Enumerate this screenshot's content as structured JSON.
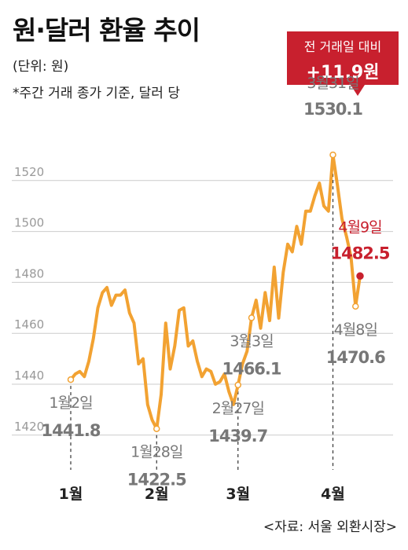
{
  "title": "원·달러 환율 추이",
  "unit_note": "(단위: 원)",
  "basis_note": "*주간 거래 종가 기준, 달러 당",
  "source": "<자료: 서울 외환시장>",
  "callout": {
    "label": "전 거래일 대비",
    "value": "+11.9원"
  },
  "colors": {
    "line": "#f2a232",
    "accent": "#c8202e",
    "grid": "#cccccc"
  },
  "chart_data": {
    "type": "line",
    "title": "원·달러 환율 추이",
    "ylabel": "",
    "xlabel": "",
    "ylim": [
      1415,
      1540
    ],
    "yticks": [
      1420,
      1440,
      1460,
      1480,
      1500,
      1520
    ],
    "month_labels": [
      {
        "label": "1월",
        "index": 0
      },
      {
        "label": "2월",
        "index": 19
      },
      {
        "label": "3월",
        "index": 37
      },
      {
        "label": "4월",
        "index": 58
      }
    ],
    "series": [
      {
        "values": [
          1441.8,
          1444,
          1445,
          1443,
          1449,
          1458,
          1470,
          1476,
          1478,
          1471,
          1475,
          1475,
          1477,
          1468,
          1464,
          1448,
          1450,
          1432,
          1426,
          1422.5,
          1436,
          1464,
          1446,
          1455,
          1469,
          1470,
          1455,
          1457,
          1449,
          1443,
          1446,
          1445,
          1440,
          1441,
          1444,
          1437,
          1432,
          1439.7,
          1448,
          1453,
          1466.1,
          1473,
          1462,
          1476,
          1465,
          1486,
          1466,
          1484,
          1495,
          1492,
          1502,
          1495,
          1508,
          1508,
          1514,
          1519,
          1510,
          1508,
          1530.1,
          1518,
          1505,
          1498,
          1490,
          1470.6,
          1482.5
        ]
      }
    ],
    "annotations": [
      {
        "date": "1월2일",
        "value": "1441.8",
        "index": 0,
        "pos": "below"
      },
      {
        "date": "1월28일",
        "value": "1422.5",
        "index": 19,
        "pos": "below"
      },
      {
        "date": "2월27일",
        "value": "1439.7",
        "index": 37,
        "pos": "below"
      },
      {
        "date": "3월3일",
        "value": "1466.1",
        "index": 40,
        "pos": "below"
      },
      {
        "date": "3월31일",
        "value": "1530.1",
        "index": 58,
        "pos": "above"
      },
      {
        "date": "4월8일",
        "value": "1470.6",
        "index": 63,
        "pos": "below"
      },
      {
        "date": "4월9일",
        "value": "1482.5",
        "index": 64,
        "pos": "above",
        "highlight": true
      }
    ]
  }
}
